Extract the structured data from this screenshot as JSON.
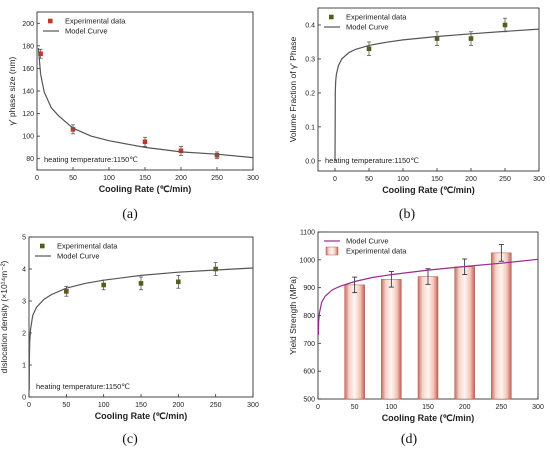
{
  "chart_data": [
    {
      "panel_label": "(a)",
      "type": "scatter",
      "title": "",
      "xlabel": "Cooling Rate (℃/min)",
      "ylabel": "γ' phase size (nm)",
      "xlim": [
        0,
        300
      ],
      "ylim": [
        70,
        210
      ],
      "xticks": [
        0,
        50,
        100,
        150,
        200,
        250,
        300
      ],
      "yticks": [
        80,
        100,
        120,
        140,
        160,
        180,
        200
      ],
      "annotation": "heating temperature:1150℃",
      "legend_position": "top-left",
      "series": [
        {
          "name": "Experimental data",
          "kind": "points",
          "color": "#c0392b",
          "marker": "square",
          "x": [
            5,
            50,
            150,
            200,
            250
          ],
          "y": [
            173,
            106,
            95,
            87,
            83
          ],
          "err": [
            4,
            4,
            4,
            4,
            3
          ]
        },
        {
          "name": "Model Curve",
          "kind": "line",
          "color": "#555555",
          "x": [
            2,
            5,
            10,
            20,
            30,
            50,
            75,
            100,
            150,
            200,
            250,
            300
          ],
          "y": [
            178,
            155,
            139,
            125,
            118,
            107,
            100,
            96,
            90,
            86,
            84,
            81
          ]
        }
      ]
    },
    {
      "panel_label": "(b)",
      "type": "scatter",
      "title": "",
      "xlabel": "Cooling Rate (℃/min)",
      "ylabel": "Volume Fraction of γ' Phase",
      "xlim": [
        -25,
        300
      ],
      "ylim": [
        -0.03,
        0.45
      ],
      "xticks": [
        0,
        50,
        100,
        150,
        200,
        250,
        300
      ],
      "yticks": [
        0.0,
        0.1,
        0.2,
        0.3,
        0.4
      ],
      "annotation": "heating temperature:1150℃",
      "legend_position": "top-left",
      "series": [
        {
          "name": "Experimental data",
          "kind": "points",
          "color": "#5a5a1e",
          "marker": "square",
          "x": [
            50,
            150,
            200,
            250
          ],
          "y": [
            0.33,
            0.36,
            0.36,
            0.4
          ],
          "err": [
            0.02,
            0.02,
            0.02,
            0.02
          ]
        },
        {
          "name": "Model Curve",
          "kind": "line",
          "color": "#555555",
          "x": [
            0,
            0.5,
            1,
            2,
            5,
            10,
            20,
            30,
            50,
            75,
            100,
            150,
            200,
            250,
            300
          ],
          "y": [
            0.0,
            0.2,
            0.235,
            0.255,
            0.28,
            0.3,
            0.318,
            0.328,
            0.34,
            0.349,
            0.356,
            0.366,
            0.374,
            0.381,
            0.388
          ]
        }
      ]
    },
    {
      "panel_label": "(c)",
      "type": "scatter",
      "title": "",
      "xlabel": "Cooling Rate (℃/min)",
      "ylabel": "dislocation density (×10¹⁴m⁻²)",
      "xlim": [
        0,
        300
      ],
      "ylim": [
        0,
        5
      ],
      "xticks": [
        0,
        50,
        100,
        150,
        200,
        250,
        300
      ],
      "yticks": [
        0,
        1,
        2,
        3,
        4,
        5
      ],
      "annotation": "heating temperature:1150℃",
      "legend_position": "top-left",
      "series": [
        {
          "name": "Experimental data",
          "kind": "points",
          "color": "#5a5a1e",
          "marker": "square",
          "x": [
            50,
            100,
            150,
            200,
            250
          ],
          "y": [
            3.3,
            3.5,
            3.55,
            3.6,
            4.0
          ],
          "err": [
            0.15,
            0.15,
            0.2,
            0.2,
            0.2
          ]
        },
        {
          "name": "Model Curve",
          "kind": "line",
          "color": "#555555",
          "x": [
            0.3,
            0.6,
            1,
            2,
            5,
            10,
            20,
            30,
            50,
            75,
            100,
            150,
            200,
            250,
            300
          ],
          "y": [
            0.2,
            1.2,
            1.7,
            2.1,
            2.55,
            2.8,
            3.05,
            3.2,
            3.4,
            3.55,
            3.65,
            3.8,
            3.9,
            3.97,
            4.03
          ]
        }
      ]
    },
    {
      "panel_label": "(d)",
      "type": "bar",
      "title": "",
      "xlabel": "Cooling Rate (℃/min)",
      "ylabel": "Yield Strength (MPa)",
      "xlim": [
        0,
        300
      ],
      "ylim": [
        500,
        1100
      ],
      "xticks": [
        0,
        50,
        100,
        150,
        200,
        250,
        300
      ],
      "yticks": [
        500,
        600,
        700,
        800,
        900,
        1000,
        1100
      ],
      "legend_position": "top-left",
      "series": [
        {
          "name": "Experimental data",
          "kind": "bars",
          "color": "#e8a89a",
          "x": [
            50,
            100,
            150,
            200,
            250
          ],
          "y": [
            910,
            930,
            940,
            975,
            1025
          ],
          "err": [
            28,
            28,
            28,
            28,
            30
          ]
        },
        {
          "name": "Model Curve",
          "kind": "line",
          "color": "#9a2a8e",
          "x": [
            0.5,
            1,
            2,
            5,
            10,
            20,
            30,
            50,
            75,
            100,
            150,
            200,
            250,
            300
          ],
          "y": [
            730,
            780,
            810,
            848,
            870,
            893,
            905,
            922,
            937,
            947,
            963,
            976,
            988,
            1002
          ]
        }
      ]
    }
  ]
}
